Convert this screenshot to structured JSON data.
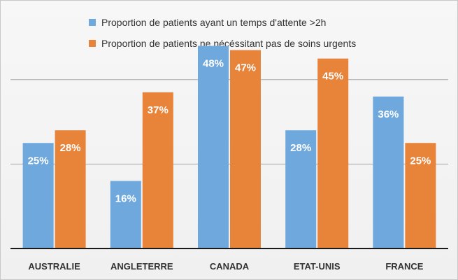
{
  "chart_data": {
    "type": "bar",
    "categories": [
      "AUSTRALIE",
      "ANGLETERRE",
      "CANADA",
      "ETAT-UNIS",
      "FRANCE"
    ],
    "series": [
      {
        "name": "Proportion de patients ayant un temps d'attente >2h",
        "values": [
          25,
          16,
          48,
          28,
          36
        ],
        "labels": [
          "25%",
          "16%",
          "48%",
          "28%",
          "36%"
        ],
        "color": "#6fa8dc"
      },
      {
        "name": "Proportion de patients ne nécéssitant pas de soins urgents",
        "values": [
          28,
          37,
          47,
          45,
          25
        ],
        "labels": [
          "28%",
          "37%",
          "47%",
          "45%",
          "25%"
        ],
        "color": "#e8833a"
      }
    ],
    "ylim": [
      0,
      60
    ],
    "grid": true,
    "legend_position": "top"
  }
}
